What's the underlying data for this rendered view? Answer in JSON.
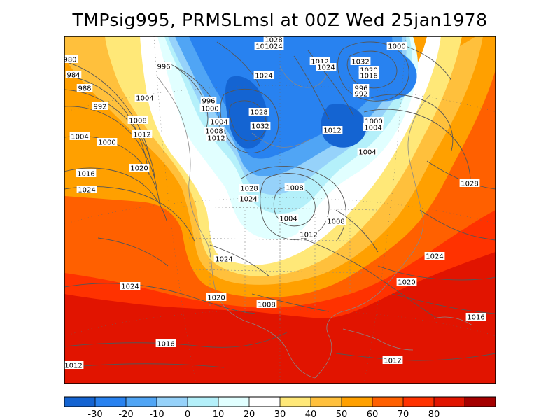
{
  "title": "TMPsig995, PRMSLmsl at 00Z Wed 25jan1978",
  "colorbar": {
    "colors": [
      "#1464d2",
      "#2882f0",
      "#50a5f5",
      "#96d2fa",
      "#b4f0fa",
      "#e1ffff",
      "#ffffff",
      "#ffe878",
      "#ffc03c",
      "#ffa000",
      "#ff6000",
      "#ff3200",
      "#e11400",
      "#a50000"
    ],
    "tick_labels": [
      "-30",
      "-20",
      "-10",
      "0",
      "10",
      "20",
      "30",
      "40",
      "50",
      "60",
      "70",
      "80"
    ]
  },
  "isobar_labels": [
    {
      "text": "980"
    },
    {
      "text": "984"
    },
    {
      "text": "988"
    },
    {
      "text": "992"
    },
    {
      "text": "996"
    },
    {
      "text": "1004"
    },
    {
      "text": "1008"
    },
    {
      "text": "1012"
    },
    {
      "text": "1004"
    },
    {
      "text": "1000"
    },
    {
      "text": "1016"
    },
    {
      "text": "1020"
    },
    {
      "text": "1024"
    },
    {
      "text": "1024"
    },
    {
      "text": "996"
    },
    {
      "text": "1000"
    },
    {
      "text": "1004"
    },
    {
      "text": "1008"
    },
    {
      "text": "1012"
    },
    {
      "text": "1028"
    },
    {
      "text": "1024"
    },
    {
      "text": "1024"
    },
    {
      "text": "1028"
    },
    {
      "text": "1032"
    },
    {
      "text": "1012"
    },
    {
      "text": "1024"
    },
    {
      "text": "1032"
    },
    {
      "text": "1020"
    },
    {
      "text": "1016"
    },
    {
      "text": "1000"
    },
    {
      "text": "996"
    },
    {
      "text": "992"
    },
    {
      "text": "1000"
    },
    {
      "text": "1004"
    },
    {
      "text": "1012"
    },
    {
      "text": "1004"
    },
    {
      "text": "1028"
    },
    {
      "text": "1024"
    },
    {
      "text": "1008"
    },
    {
      "text": "1004"
    },
    {
      "text": "1012"
    },
    {
      "text": "1008"
    },
    {
      "text": "1024"
    },
    {
      "text": "1024"
    },
    {
      "text": "1020"
    },
    {
      "text": "1008"
    },
    {
      "text": "1028"
    },
    {
      "text": "1024"
    },
    {
      "text": "1020"
    },
    {
      "text": "1016"
    },
    {
      "text": "1016"
    },
    {
      "text": "1012"
    },
    {
      "text": "1012"
    },
    {
      "text": "1028"
    }
  ]
}
